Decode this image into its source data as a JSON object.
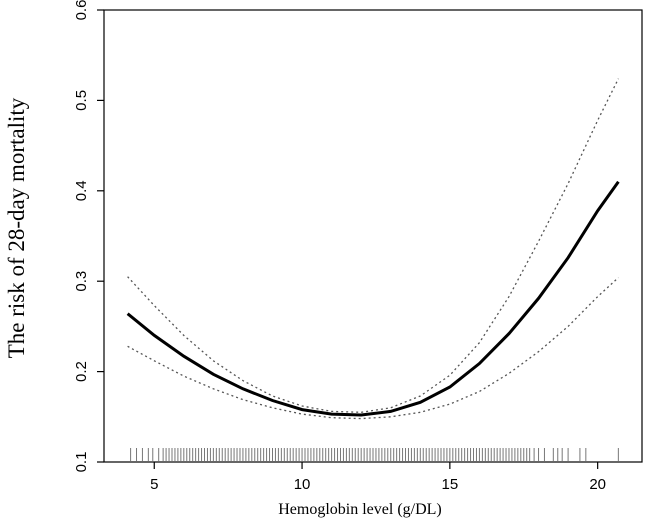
{
  "chart_data": {
    "type": "line",
    "title": "",
    "xlabel": "Hemoglobin level (g/DL)",
    "ylabel": "The risk of 28-day mortality",
    "xlim": [
      3.3,
      21.5
    ],
    "ylim": [
      0.1,
      0.6
    ],
    "x_ticks": [
      5,
      10,
      15,
      20
    ],
    "y_ticks": [
      0.1,
      0.2,
      0.3,
      0.4,
      0.5,
      0.6
    ],
    "y_tick_labels": [
      "0.1",
      "0.2",
      "0.3",
      "0.4",
      "0.5",
      "0.6"
    ],
    "grid": false,
    "legend": "none",
    "x": [
      4.1,
      5,
      6,
      7,
      8,
      9,
      10,
      11,
      12,
      13,
      14,
      15,
      16,
      17,
      18,
      19,
      20,
      20.7
    ],
    "series": [
      {
        "role": "estimate",
        "y": [
          0.264,
          0.24,
          0.217,
          0.197,
          0.181,
          0.168,
          0.158,
          0.153,
          0.152,
          0.156,
          0.166,
          0.183,
          0.209,
          0.242,
          0.281,
          0.326,
          0.378,
          0.41
        ]
      },
      {
        "role": "upper-ci",
        "y": [
          0.305,
          0.273,
          0.24,
          0.212,
          0.19,
          0.173,
          0.162,
          0.156,
          0.155,
          0.16,
          0.173,
          0.196,
          0.232,
          0.283,
          0.344,
          0.408,
          0.478,
          0.524
        ]
      },
      {
        "role": "lower-ci",
        "y": [
          0.228,
          0.212,
          0.195,
          0.181,
          0.169,
          0.16,
          0.153,
          0.149,
          0.148,
          0.15,
          0.155,
          0.164,
          0.178,
          0.198,
          0.222,
          0.25,
          0.283,
          0.304
        ]
      }
    ],
    "rug": {
      "sparse_low": [
        4.2,
        4.4,
        4.6,
        4.8,
        4.95,
        5.15
      ],
      "dense_range": [
        5.3,
        17.7
      ],
      "dense_step": 0.1,
      "sparse_high": [
        17.85,
        18.0,
        18.2,
        18.5,
        18.65,
        18.8,
        19.0,
        19.4,
        19.6,
        20.7
      ]
    }
  }
}
